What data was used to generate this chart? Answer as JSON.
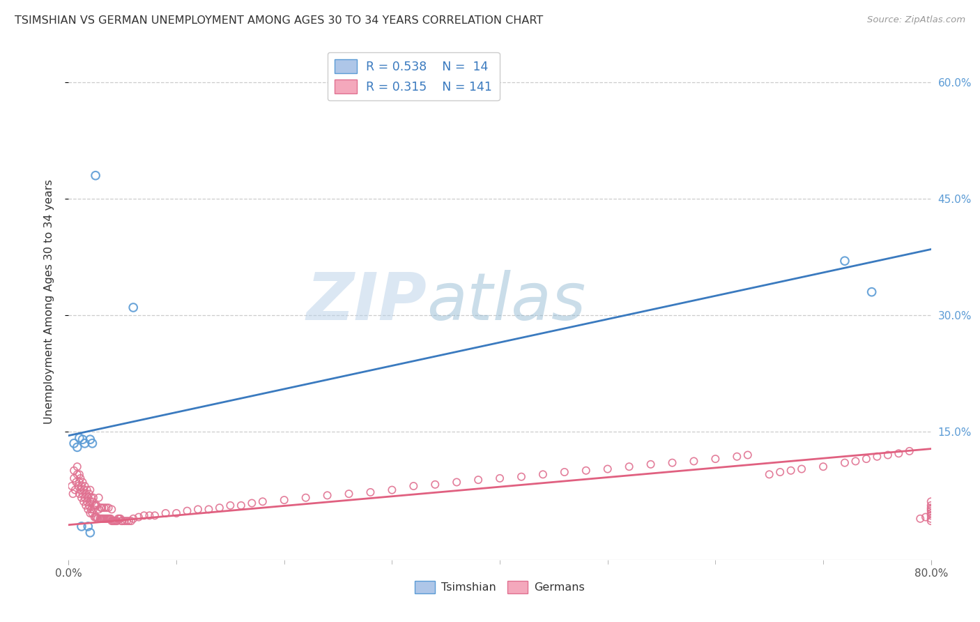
{
  "title": "TSIMSHIAN VS GERMAN UNEMPLOYMENT AMONG AGES 30 TO 34 YEARS CORRELATION CHART",
  "source": "Source: ZipAtlas.com",
  "ylabel": "Unemployment Among Ages 30 to 34 years",
  "xlim": [
    0.0,
    0.8
  ],
  "ylim": [
    -0.015,
    0.65
  ],
  "tsimshian_color": "#aec6e8",
  "german_color": "#f4a8bc",
  "tsimshian_edge_color": "#5b9bd5",
  "german_edge_color": "#e07090",
  "tsimshian_line_color": "#3a7abf",
  "german_line_color": "#e06080",
  "background_color": "#ffffff",
  "grid_color": "#cccccc",
  "watermark_zip": "ZIP",
  "watermark_atlas": "atlas",
  "right_tick_color": "#5b9bd5",
  "tsimshian_x": [
    0.005,
    0.008,
    0.01,
    0.012,
    0.013,
    0.015,
    0.018,
    0.02,
    0.02,
    0.022,
    0.025,
    0.06,
    0.72,
    0.745
  ],
  "tsimshian_y": [
    0.135,
    0.13,
    0.142,
    0.028,
    0.14,
    0.135,
    0.028,
    0.02,
    0.14,
    0.135,
    0.48,
    0.31,
    0.37,
    0.33
  ],
  "german_x": [
    0.003,
    0.004,
    0.005,
    0.005,
    0.006,
    0.007,
    0.008,
    0.008,
    0.009,
    0.01,
    0.01,
    0.01,
    0.011,
    0.011,
    0.012,
    0.012,
    0.013,
    0.013,
    0.014,
    0.014,
    0.015,
    0.015,
    0.016,
    0.016,
    0.017,
    0.017,
    0.018,
    0.018,
    0.019,
    0.019,
    0.02,
    0.02,
    0.02,
    0.021,
    0.021,
    0.022,
    0.022,
    0.023,
    0.023,
    0.024,
    0.024,
    0.025,
    0.025,
    0.026,
    0.026,
    0.027,
    0.028,
    0.028,
    0.029,
    0.03,
    0.03,
    0.031,
    0.031,
    0.032,
    0.033,
    0.033,
    0.034,
    0.035,
    0.035,
    0.036,
    0.037,
    0.037,
    0.038,
    0.039,
    0.04,
    0.04,
    0.041,
    0.042,
    0.043,
    0.044,
    0.045,
    0.046,
    0.047,
    0.048,
    0.049,
    0.05,
    0.052,
    0.054,
    0.056,
    0.058,
    0.06,
    0.065,
    0.07,
    0.075,
    0.08,
    0.09,
    0.1,
    0.11,
    0.12,
    0.13,
    0.14,
    0.15,
    0.16,
    0.17,
    0.18,
    0.2,
    0.22,
    0.24,
    0.26,
    0.28,
    0.3,
    0.32,
    0.34,
    0.36,
    0.38,
    0.4,
    0.42,
    0.44,
    0.46,
    0.48,
    0.5,
    0.52,
    0.54,
    0.56,
    0.58,
    0.6,
    0.62,
    0.63,
    0.65,
    0.66,
    0.67,
    0.68,
    0.7,
    0.72,
    0.73,
    0.74,
    0.75,
    0.76,
    0.77,
    0.78,
    0.79,
    0.795,
    0.8,
    0.8,
    0.8,
    0.8,
    0.8,
    0.8,
    0.8,
    0.8,
    0.8
  ],
  "german_y": [
    0.08,
    0.07,
    0.09,
    0.1,
    0.075,
    0.085,
    0.095,
    0.105,
    0.08,
    0.07,
    0.085,
    0.095,
    0.075,
    0.09,
    0.065,
    0.08,
    0.07,
    0.085,
    0.06,
    0.075,
    0.065,
    0.08,
    0.055,
    0.07,
    0.06,
    0.075,
    0.05,
    0.065,
    0.055,
    0.07,
    0.045,
    0.06,
    0.075,
    0.05,
    0.065,
    0.045,
    0.06,
    0.05,
    0.065,
    0.04,
    0.055,
    0.04,
    0.055,
    0.04,
    0.055,
    0.038,
    0.05,
    0.065,
    0.038,
    0.038,
    0.052,
    0.038,
    0.052,
    0.038,
    0.038,
    0.052,
    0.038,
    0.038,
    0.052,
    0.038,
    0.038,
    0.052,
    0.038,
    0.038,
    0.035,
    0.05,
    0.035,
    0.035,
    0.035,
    0.035,
    0.035,
    0.038,
    0.038,
    0.038,
    0.035,
    0.035,
    0.035,
    0.035,
    0.035,
    0.035,
    0.038,
    0.04,
    0.042,
    0.042,
    0.042,
    0.045,
    0.045,
    0.048,
    0.05,
    0.05,
    0.052,
    0.055,
    0.055,
    0.058,
    0.06,
    0.062,
    0.065,
    0.068,
    0.07,
    0.072,
    0.075,
    0.08,
    0.082,
    0.085,
    0.088,
    0.09,
    0.092,
    0.095,
    0.098,
    0.1,
    0.102,
    0.105,
    0.108,
    0.11,
    0.112,
    0.115,
    0.118,
    0.12,
    0.095,
    0.098,
    0.1,
    0.102,
    0.105,
    0.11,
    0.112,
    0.115,
    0.118,
    0.12,
    0.122,
    0.125,
    0.038,
    0.04,
    0.035,
    0.045,
    0.05,
    0.038,
    0.042,
    0.055,
    0.06,
    0.048,
    0.052
  ]
}
